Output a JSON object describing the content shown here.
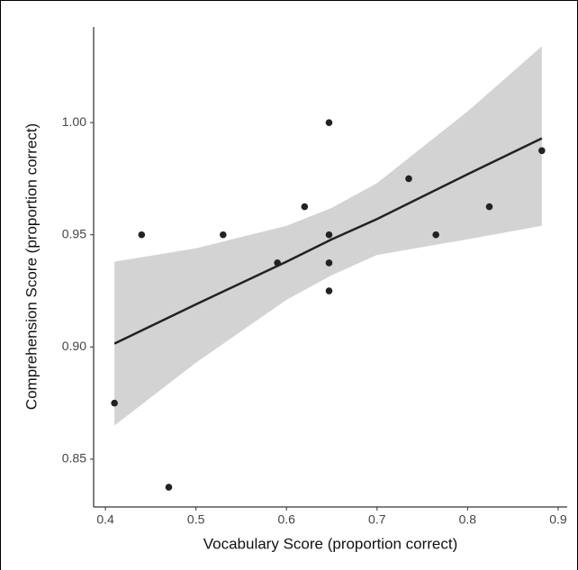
{
  "chart_data": {
    "type": "scatter",
    "xlabel": "Vocabulary Score (proportion correct)",
    "ylabel": "Comprehension Score (proportion correct)",
    "x": [
      0.41,
      0.44,
      0.47,
      0.53,
      0.59,
      0.62,
      0.647,
      0.647,
      0.647,
      0.647,
      0.735,
      0.765,
      0.824,
      0.882
    ],
    "values": [
      0.875,
      0.95,
      0.8375,
      0.95,
      0.9375,
      0.9625,
      1.0,
      0.95,
      0.9375,
      0.925,
      0.975,
      0.95,
      0.9625,
      0.9875
    ],
    "color": "#222222",
    "fit": {
      "x": [
        0.41,
        0.5,
        0.6,
        0.65,
        0.7,
        0.8,
        0.882
      ],
      "values": [
        0.9015,
        0.919,
        0.938,
        0.948,
        0.957,
        0.977,
        0.993
      ],
      "lower": [
        0.865,
        0.893,
        0.921,
        0.932,
        0.941,
        0.948,
        0.954
      ],
      "upper": [
        0.938,
        0.944,
        0.954,
        0.962,
        0.973,
        1.005,
        1.034
      ],
      "color": "#222222",
      "band_color": "#d3d3d3"
    },
    "xlim": [
      0.387,
      0.91
    ],
    "ylim": [
      0.8287,
      1.0426
    ],
    "xticks": [
      0.4,
      0.5,
      0.6,
      0.7,
      0.8,
      0.9
    ],
    "yticks": [
      {
        "value": 0.85,
        "label": "0.85"
      },
      {
        "value": 0.9,
        "label": "0.90"
      },
      0.95,
      {
        "value": 1.0,
        "label": "1.00"
      }
    ]
  }
}
